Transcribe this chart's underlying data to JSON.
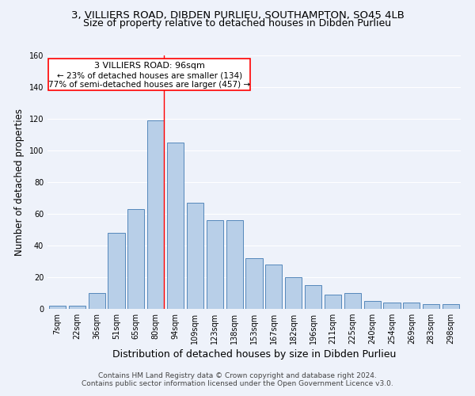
{
  "title1": "3, VILLIERS ROAD, DIBDEN PURLIEU, SOUTHAMPTON, SO45 4LB",
  "title2": "Size of property relative to detached houses in Dibden Purlieu",
  "xlabel": "Distribution of detached houses by size in Dibden Purlieu",
  "ylabel": "Number of detached properties",
  "categories": [
    "7sqm",
    "22sqm",
    "36sqm",
    "51sqm",
    "65sqm",
    "80sqm",
    "94sqm",
    "109sqm",
    "123sqm",
    "138sqm",
    "153sqm",
    "167sqm",
    "182sqm",
    "196sqm",
    "211sqm",
    "225sqm",
    "240sqm",
    "254sqm",
    "269sqm",
    "283sqm",
    "298sqm"
  ],
  "values": [
    2,
    2,
    10,
    48,
    63,
    119,
    105,
    67,
    56,
    56,
    32,
    28,
    20,
    15,
    9,
    10,
    5,
    4,
    4,
    3,
    3
  ],
  "bar_color": "#b8cfe8",
  "bar_edge_color": "#5588bb",
  "background_color": "#eef2fa",
  "grid_color": "#ffffff",
  "ylim": [
    0,
    160
  ],
  "yticks": [
    0,
    20,
    40,
    60,
    80,
    100,
    120,
    140,
    160
  ],
  "annotation_title": "3 VILLIERS ROAD: 96sqm",
  "annotation_line1": "← 23% of detached houses are smaller (134)",
  "annotation_line2": "77% of semi-detached houses are larger (457) →",
  "red_line_x": 5.4,
  "footer1": "Contains HM Land Registry data © Crown copyright and database right 2024.",
  "footer2": "Contains public sector information licensed under the Open Government Licence v3.0.",
  "title1_fontsize": 9.5,
  "title2_fontsize": 9,
  "xlabel_fontsize": 9,
  "ylabel_fontsize": 8.5,
  "tick_fontsize": 7,
  "annotation_fontsize": 8,
  "footer_fontsize": 6.5
}
